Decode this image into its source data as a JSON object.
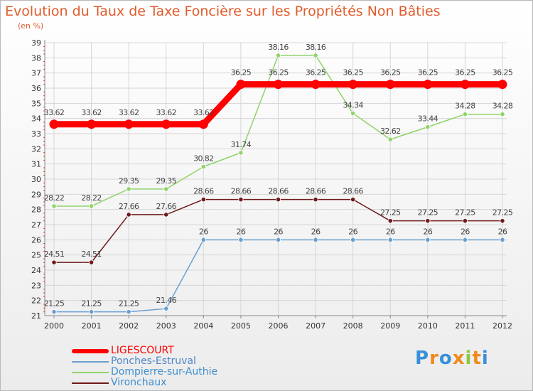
{
  "title": "Evolution du Taux de Taxe Foncière sur les Propriétés Non Bâties",
  "subtitle": "(en %)",
  "chart_data": {
    "type": "line",
    "title": "Evolution du Taux de Taxe Foncière sur les Propriétés Non Bâties",
    "ylabel": "(en %)",
    "xlabel": "",
    "ylim": [
      21,
      39
    ],
    "yticks": [
      "21",
      "22",
      "23",
      "24",
      "25",
      "26",
      "27",
      "28",
      "29",
      "30",
      "31",
      "32",
      "33",
      "34",
      "35",
      "36",
      "37",
      "38",
      "39"
    ],
    "categories": [
      "2000",
      "2001",
      "2002",
      "2003",
      "2004",
      "2005",
      "2006",
      "2007",
      "2008",
      "2009",
      "2010",
      "2011",
      "2012"
    ],
    "grid": true,
    "series": [
      {
        "name": "Dompierre-sur-Authie",
        "color": "#8fd46a",
        "values": [
          28.22,
          28.22,
          29.35,
          29.35,
          30.82,
          31.74,
          38.16,
          38.16,
          34.34,
          32.62,
          33.44,
          34.28,
          34.28
        ],
        "labels": [
          "28.22",
          "28.22",
          "29.35",
          "29.35",
          "30.82",
          "31.74",
          "38.16",
          "38.16",
          "34.34",
          "32.62",
          "33.44",
          "34.28",
          "34.28"
        ]
      },
      {
        "name": "Vironchaux",
        "color": "#6e1a1a",
        "values": [
          24.51,
          24.51,
          27.66,
          27.66,
          28.66,
          28.66,
          28.66,
          28.66,
          28.66,
          27.25,
          27.25,
          27.25,
          27.25
        ],
        "labels": [
          "24.51",
          "24.51",
          "27.66",
          "27.66",
          "28.66",
          "28.66",
          "28.66",
          "28.66",
          "28.66",
          "27.25",
          "27.25",
          "27.25",
          "27.25"
        ]
      },
      {
        "name": "Ponches-Estruval",
        "color": "#6a9fd0",
        "values": [
          21.25,
          21.25,
          21.25,
          21.46,
          26,
          26,
          26,
          26,
          26,
          26,
          26,
          26,
          26
        ],
        "labels": [
          "21.25",
          "21.25",
          "21.25",
          "21.46",
          "26",
          "26",
          "26",
          "26",
          "26",
          "26",
          "26",
          "26",
          "26"
        ]
      },
      {
        "name": "LIGESCOURT",
        "color": "#ff0000",
        "values": [
          33.62,
          33.62,
          33.62,
          33.62,
          33.62,
          36.25,
          36.25,
          36.25,
          36.25,
          36.25,
          36.25,
          36.25,
          36.25
        ],
        "labels": [
          "33.62",
          "33.62",
          "33.62",
          "33.62",
          "33.62",
          "36.25",
          "36.25",
          "36.25",
          "36.25",
          "36.25",
          "36.25",
          "36.25",
          "36.25"
        ]
      }
    ]
  },
  "legend": [
    {
      "name": "LIGESCOURT",
      "color": "#ff0000"
    },
    {
      "name": "Ponches-Estruval",
      "color": "#6a9fd0"
    },
    {
      "name": "Dompierre-sur-Authie",
      "color": "#8fd46a"
    },
    {
      "name": "Vironchaux",
      "color": "#6e1a1a"
    }
  ],
  "logo": {
    "letters": [
      "P",
      "r",
      "o",
      "x",
      "i",
      "t",
      "i"
    ],
    "colors": [
      "#3a8fd9",
      "#f08a1c",
      "#3a8fd9",
      "#f08a1c",
      "#8cc63f",
      "#f08a1c",
      "#3a8fd9"
    ]
  }
}
